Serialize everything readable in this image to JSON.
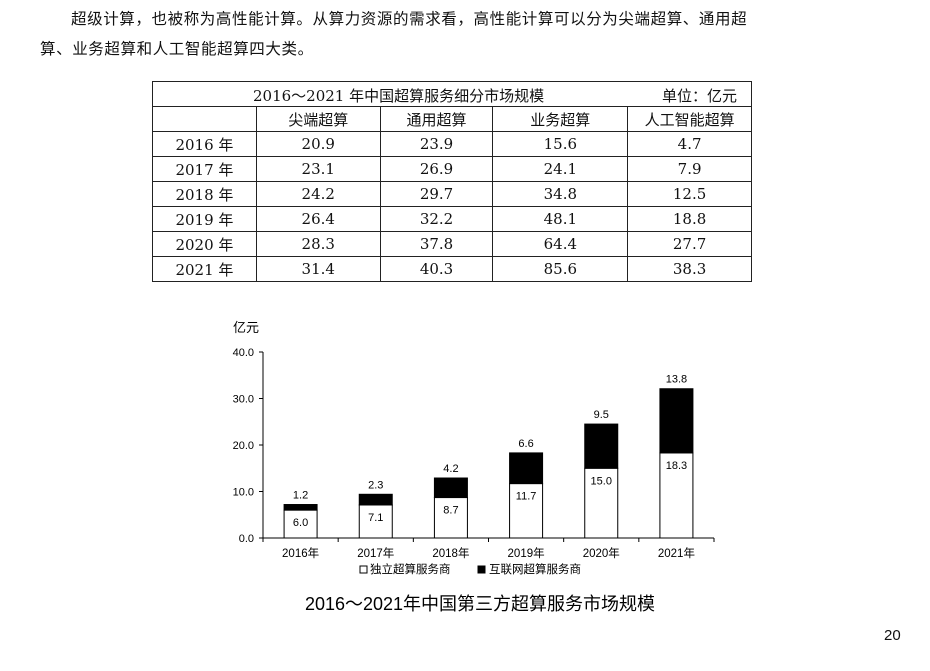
{
  "paragraph": {
    "line1": "超级计算，也被称为高性能计算。从算力资源的需求看，高性能计算可以分为尖端超算、通用超",
    "line2": "算、业务超算和人工智能超算四大类。"
  },
  "table": {
    "title": "2016～2021 年中国超算服务细分市场规模",
    "unit": "单位：亿元",
    "headers": [
      "",
      "尖端超算",
      "通用超算",
      "业务超算",
      "人工智能超算"
    ],
    "rows": [
      [
        "2016 年",
        "20.9",
        "23.9",
        "15.6",
        "4.7"
      ],
      [
        "2017 年",
        "23.1",
        "26.9",
        "24.1",
        "7.9"
      ],
      [
        "2018 年",
        "24.2",
        "29.7",
        "34.8",
        "12.5"
      ],
      [
        "2019 年",
        "26.4",
        "32.2",
        "48.1",
        "18.8"
      ],
      [
        "2020 年",
        "28.3",
        "37.8",
        "64.4",
        "27.7"
      ],
      [
        "2021 年",
        "31.4",
        "40.3",
        "85.6",
        "38.3"
      ]
    ]
  },
  "chart_data": {
    "type": "bar",
    "stacked": true,
    "title": "2016～2021年中国第三方超算服务市场规模",
    "ylabel": "亿元",
    "xlabel": "",
    "ylim": [
      0,
      40
    ],
    "yticks": [
      "0.0",
      "10.0",
      "20.0",
      "30.0",
      "40.0"
    ],
    "grid": false,
    "legend_position": "bottom",
    "categories": [
      "2016年",
      "2017年",
      "2018年",
      "2019年",
      "2020年",
      "2021年"
    ],
    "series": [
      {
        "name": "独立超算服务商",
        "values": [
          6.0,
          7.1,
          8.7,
          11.7,
          15.0,
          18.3
        ],
        "color": "#ffffff",
        "labels": [
          "6.0",
          "7.1",
          "8.7",
          "11.7",
          "15.0",
          "18.3"
        ]
      },
      {
        "name": "互联网超算服务商",
        "values": [
          1.2,
          2.3,
          4.2,
          6.6,
          9.5,
          13.8
        ],
        "color": "#000000",
        "labels": [
          "1.2",
          "2.3",
          "4.2",
          "6.6",
          "9.5",
          "13.8"
        ]
      }
    ]
  },
  "page_number": "20"
}
